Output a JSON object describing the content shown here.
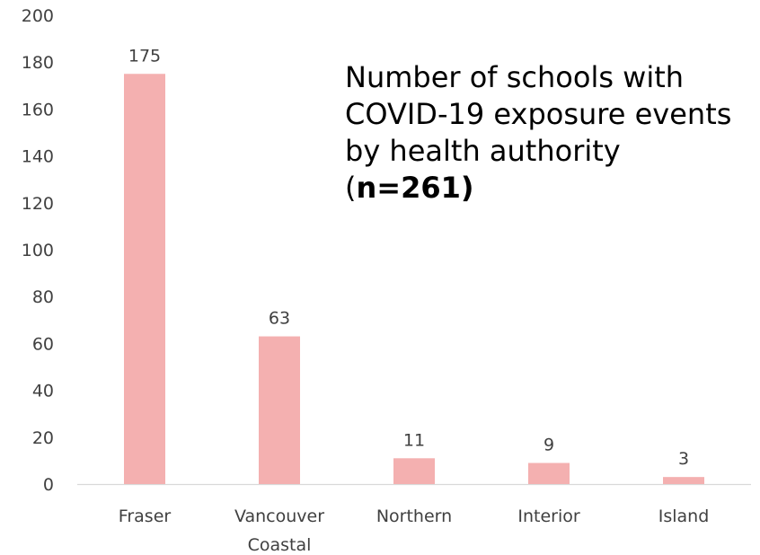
{
  "chart_data": {
    "type": "bar",
    "title": {
      "text": "Number of schools with COVID-19 exposure events by health authority (",
      "emphasis": "n=261)"
    },
    "categories": [
      [
        "Fraser"
      ],
      [
        "Vancouver",
        "Coastal"
      ],
      [
        "Northern"
      ],
      [
        "Interior"
      ],
      [
        "Island"
      ]
    ],
    "values": [
      175,
      63,
      11,
      9,
      3
    ],
    "data_labels": [
      "175",
      "63",
      "11",
      "9",
      "3"
    ],
    "ylim": [
      0,
      200
    ],
    "yticks": [
      0,
      20,
      40,
      60,
      80,
      100,
      120,
      140,
      160,
      180,
      200
    ],
    "grid": false,
    "legend": "none",
    "bar_color": "#f4b0b0",
    "axis_color": "#d9d9d9",
    "text_color": "#404040"
  }
}
